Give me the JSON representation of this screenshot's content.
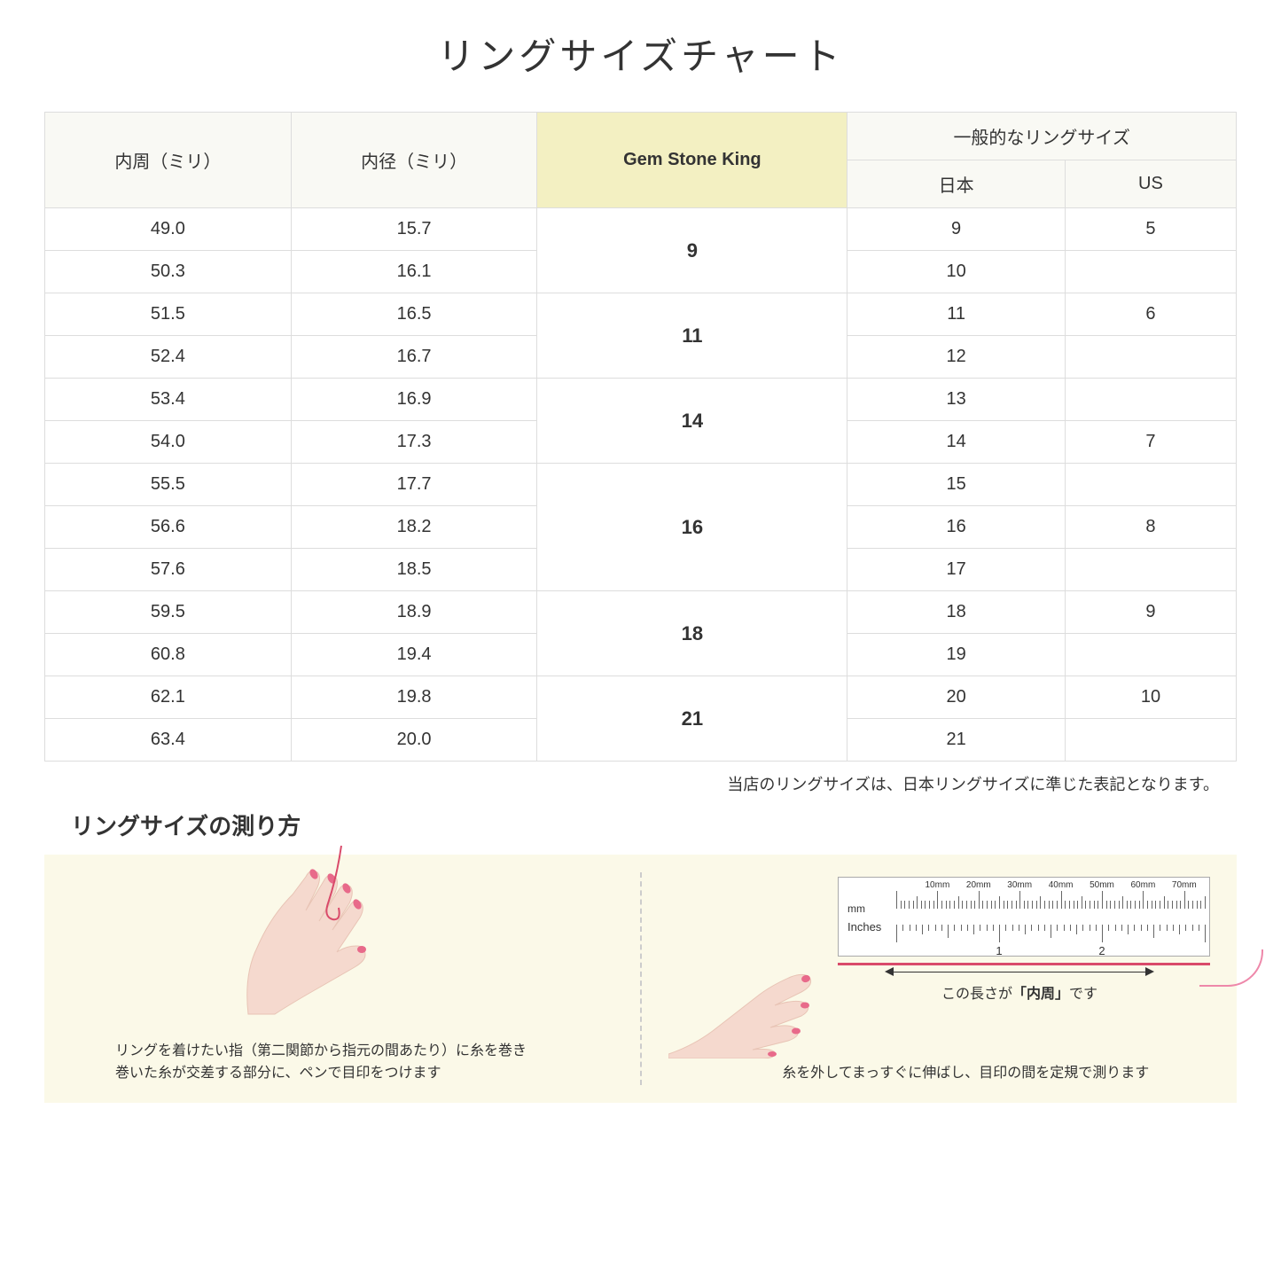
{
  "title": "リングサイズチャート",
  "headers": {
    "circumference": "内周（ミリ）",
    "diameter": "内径（ミリ）",
    "gsk": "Gem Stone King",
    "general": "一般的なリングサイズ",
    "japan": "日本",
    "us": "US"
  },
  "rows": [
    {
      "circ": "49.0",
      "diam": "15.7",
      "jp": "9",
      "us": "5"
    },
    {
      "circ": "50.3",
      "diam": "16.1",
      "jp": "10",
      "us": ""
    },
    {
      "circ": "51.5",
      "diam": "16.5",
      "jp": "11",
      "us": "6"
    },
    {
      "circ": "52.4",
      "diam": "16.7",
      "jp": "12",
      "us": ""
    },
    {
      "circ": "53.4",
      "diam": "16.9",
      "jp": "13",
      "us": ""
    },
    {
      "circ": "54.0",
      "diam": "17.3",
      "jp": "14",
      "us": "7"
    },
    {
      "circ": "55.5",
      "diam": "17.7",
      "jp": "15",
      "us": ""
    },
    {
      "circ": "56.6",
      "diam": "18.2",
      "jp": "16",
      "us": "8"
    },
    {
      "circ": "57.6",
      "diam": "18.5",
      "jp": "17",
      "us": ""
    },
    {
      "circ": "59.5",
      "diam": "18.9",
      "jp": "18",
      "us": "9"
    },
    {
      "circ": "60.8",
      "diam": "19.4",
      "jp": "19",
      "us": ""
    },
    {
      "circ": "62.1",
      "diam": "19.8",
      "jp": "20",
      "us": "10"
    },
    {
      "circ": "63.4",
      "diam": "20.0",
      "jp": "21",
      "us": ""
    }
  ],
  "gsk_groups": [
    {
      "value": "9",
      "rowspan": 2
    },
    {
      "value": "11",
      "rowspan": 2
    },
    {
      "value": "14",
      "rowspan": 2
    },
    {
      "value": "16",
      "rowspan": 3
    },
    {
      "value": "18",
      "rowspan": 2
    },
    {
      "value": "21",
      "rowspan": 2
    }
  ],
  "note": "当店のリングサイズは、日本リングサイズに準じた表記となります。",
  "subtitle": "リングサイズの測り方",
  "instruction_left_1": "リングを着けたい指（第二関節から指元の間あたり）に糸を巻き",
  "instruction_left_2": "巻いた糸が交差する部分に、ペンで目印をつけます",
  "instruction_right": "糸を外してまっすぐに伸ばし、目印の間を定規で測ります",
  "measure_label_1": "この長さが",
  "measure_label_2": "「内周」",
  "measure_label_3": "です",
  "ruler": {
    "mm_label": "mm",
    "inches_label": "Inches",
    "mm_ticks": [
      "10mm",
      "20mm",
      "30mm",
      "40mm",
      "50mm",
      "60mm",
      "70mm"
    ],
    "in_ticks": [
      "1",
      "2"
    ]
  },
  "colors": {
    "header_bg": "#f9f9f4",
    "highlight_bg": "#f3f0c2",
    "instruction_bg": "#fbf9e8",
    "skin": "#f5d9ce",
    "nail": "#e86a8a",
    "thread": "#d94a6a",
    "border": "#dddddd"
  }
}
